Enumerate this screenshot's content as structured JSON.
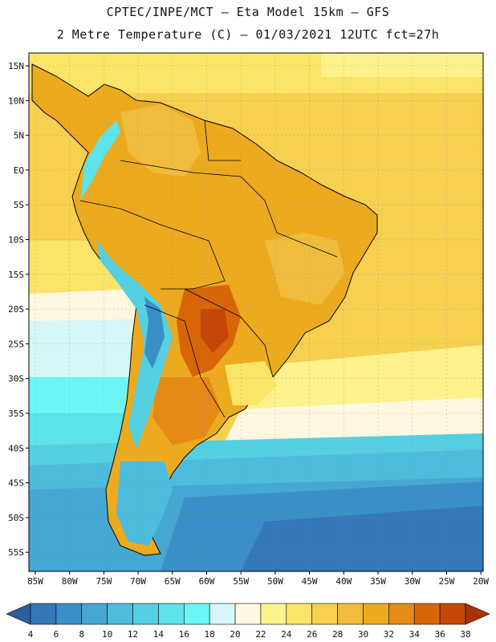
{
  "header": {
    "line1": "CPTEC/INPE/MCT –  Eta Model 15km – GFS",
    "line2": "2 Metre Temperature (C) – 01/03/2021 12UTC fct=27h"
  },
  "map": {
    "lat_labels": [
      "15N",
      "10N",
      "5N",
      "EQ",
      "5S",
      "10S",
      "15S",
      "20S",
      "25S",
      "30S",
      "35S",
      "40S",
      "45S",
      "50S",
      "55S"
    ],
    "lon_labels": [
      "85W",
      "80W",
      "75W",
      "70W",
      "65W",
      "60W",
      "55W",
      "50W",
      "45W",
      "40W",
      "35W",
      "30W",
      "25W",
      "20W"
    ]
  },
  "colorbar": {
    "values": [
      "4",
      "6",
      "8",
      "10",
      "12",
      "14",
      "16",
      "18",
      "20",
      "22",
      "24",
      "26",
      "28",
      "30",
      "32",
      "34",
      "36",
      "38"
    ],
    "colors": [
      "#2b5f9e",
      "#3478b8",
      "#3a90c6",
      "#45a8d3",
      "#4ebcdc",
      "#55cfe2",
      "#5de3ea",
      "#6cf5f5",
      "#d6f6f8",
      "#fff7df",
      "#fdf28c",
      "#fbe467",
      "#f6d04f",
      "#efbc3c",
      "#ecaa1f",
      "#e58a14",
      "#d86609",
      "#c44705",
      "#aa3303"
    ]
  },
  "colors": {
    "ocean_north": "#f6d04f",
    "ocean_far_north": "#fbe467",
    "land_hot": "#ecaa1f",
    "land_very_hot": "#d86609",
    "cold_ocean": "#3478b8"
  }
}
